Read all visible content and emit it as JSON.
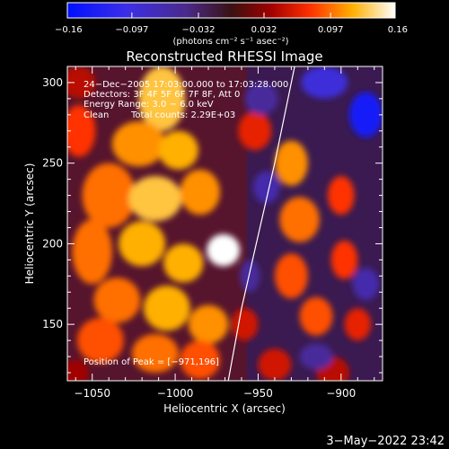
{
  "chart_data": {
    "type": "heatmap",
    "title": "Reconstructed RHESSI Image",
    "xlabel": "Heliocentric X (arcsec)",
    "ylabel": "Heliocentric Y (arcsec)",
    "xlim": [
      -1065,
      -875
    ],
    "ylim": [
      115,
      310
    ],
    "xticks": [
      -1050,
      -1000,
      -950,
      -900
    ],
    "yticks": [
      150,
      200,
      250,
      300
    ],
    "xtick_labels": [
      "−1050",
      "−1000",
      "−950",
      "−900"
    ],
    "ytick_labels": [
      "150",
      "200",
      "250",
      "300"
    ],
    "colorbar": {
      "range": [
        -0.16,
        0.16
      ],
      "ticks": [
        -0.16,
        -0.097,
        -0.032,
        0.032,
        0.097,
        0.16
      ],
      "tick_labels": [
        "−0.16",
        "−0.097",
        "−0.032",
        "0.032",
        "0.097",
        "0.16"
      ],
      "units_label": "(photons cm⁻² s⁻¹ asec⁻²)"
    },
    "annotations": {
      "time": "24−Dec−2005 17:03:00.000 to 17:03:28.000",
      "detectors": "Detectors: 3F 4F 5F 6F 7F 8F, Att 0",
      "energy": "Energy Range: 3.0 − 6.0 keV",
      "method": "Clean",
      "counts": "Total counts: 2.29E+03",
      "peak": "Position of Peak = [−971,196]"
    },
    "peak": {
      "x": -971,
      "y": 196
    },
    "limb_points": [
      [
        -968,
        115
      ],
      [
        -960,
        160
      ],
      [
        -950,
        205
      ],
      [
        -940,
        250
      ],
      [
        -928,
        310
      ]
    ],
    "blobs": [
      {
        "x": -1008,
        "y": 290,
        "rx": 14,
        "ry": 20,
        "v": 0.13
      },
      {
        "x": -1022,
        "y": 262,
        "rx": 16,
        "ry": 14,
        "v": 0.11
      },
      {
        "x": -998,
        "y": 258,
        "rx": 12,
        "ry": 12,
        "v": 0.12
      },
      {
        "x": -1040,
        "y": 230,
        "rx": 16,
        "ry": 20,
        "v": 0.1
      },
      {
        "x": -1012,
        "y": 228,
        "rx": 16,
        "ry": 14,
        "v": 0.13
      },
      {
        "x": -985,
        "y": 232,
        "rx": 12,
        "ry": 14,
        "v": 0.11
      },
      {
        "x": -1050,
        "y": 195,
        "rx": 12,
        "ry": 20,
        "v": 0.1
      },
      {
        "x": -1020,
        "y": 200,
        "rx": 14,
        "ry": 14,
        "v": 0.12
      },
      {
        "x": -971,
        "y": 196,
        "rx": 10,
        "ry": 10,
        "v": 0.16
      },
      {
        "x": -995,
        "y": 188,
        "rx": 12,
        "ry": 12,
        "v": 0.12
      },
      {
        "x": -1035,
        "y": 165,
        "rx": 14,
        "ry": 14,
        "v": 0.1
      },
      {
        "x": -1005,
        "y": 160,
        "rx": 14,
        "ry": 14,
        "v": 0.12
      },
      {
        "x": -980,
        "y": 150,
        "rx": 12,
        "ry": 12,
        "v": 0.11
      },
      {
        "x": -1045,
        "y": 140,
        "rx": 14,
        "ry": 14,
        "v": 0.09
      },
      {
        "x": -1012,
        "y": 132,
        "rx": 14,
        "ry": 12,
        "v": 0.1
      },
      {
        "x": -985,
        "y": 128,
        "rx": 12,
        "ry": 12,
        "v": 0.09
      },
      {
        "x": -1058,
        "y": 270,
        "rx": 10,
        "ry": 16,
        "v": 0.08
      },
      {
        "x": -930,
        "y": 250,
        "rx": 10,
        "ry": 14,
        "v": 0.11
      },
      {
        "x": -925,
        "y": 215,
        "rx": 12,
        "ry": 14,
        "v": 0.1
      },
      {
        "x": -930,
        "y": 180,
        "rx": 10,
        "ry": 14,
        "v": 0.09
      },
      {
        "x": -915,
        "y": 155,
        "rx": 10,
        "ry": 12,
        "v": 0.09
      },
      {
        "x": -900,
        "y": 230,
        "rx": 8,
        "ry": 12,
        "v": 0.08
      },
      {
        "x": -898,
        "y": 190,
        "rx": 8,
        "ry": 12,
        "v": 0.08
      },
      {
        "x": -890,
        "y": 150,
        "rx": 8,
        "ry": 10,
        "v": 0.07
      },
      {
        "x": -952,
        "y": 270,
        "rx": 10,
        "ry": 12,
        "v": 0.07
      },
      {
        "x": -958,
        "y": 150,
        "rx": 8,
        "ry": 10,
        "v": 0.06
      },
      {
        "x": -940,
        "y": 125,
        "rx": 10,
        "ry": 10,
        "v": 0.06
      },
      {
        "x": -905,
        "y": 120,
        "rx": 10,
        "ry": 10,
        "v": 0.05
      },
      {
        "x": -1058,
        "y": 300,
        "rx": 10,
        "ry": 10,
        "v": 0.05
      },
      {
        "x": -910,
        "y": 300,
        "rx": 14,
        "ry": 10,
        "v": -0.09
      },
      {
        "x": -885,
        "y": 280,
        "rx": 10,
        "ry": 14,
        "v": -0.14
      },
      {
        "x": -948,
        "y": 290,
        "rx": 10,
        "ry": 10,
        "v": -0.05
      },
      {
        "x": -885,
        "y": 175,
        "rx": 8,
        "ry": 10,
        "v": -0.06
      },
      {
        "x": -945,
        "y": 235,
        "rx": 8,
        "ry": 10,
        "v": -0.06
      },
      {
        "x": -955,
        "y": 180,
        "rx": 6,
        "ry": 10,
        "v": -0.05
      },
      {
        "x": -915,
        "y": 130,
        "rx": 10,
        "ry": 8,
        "v": -0.05
      },
      {
        "x": -1060,
        "y": 120,
        "rx": 8,
        "ry": 8,
        "v": 0.04
      }
    ]
  },
  "footer": {
    "timestamp": "3−May−2022 23:42"
  }
}
